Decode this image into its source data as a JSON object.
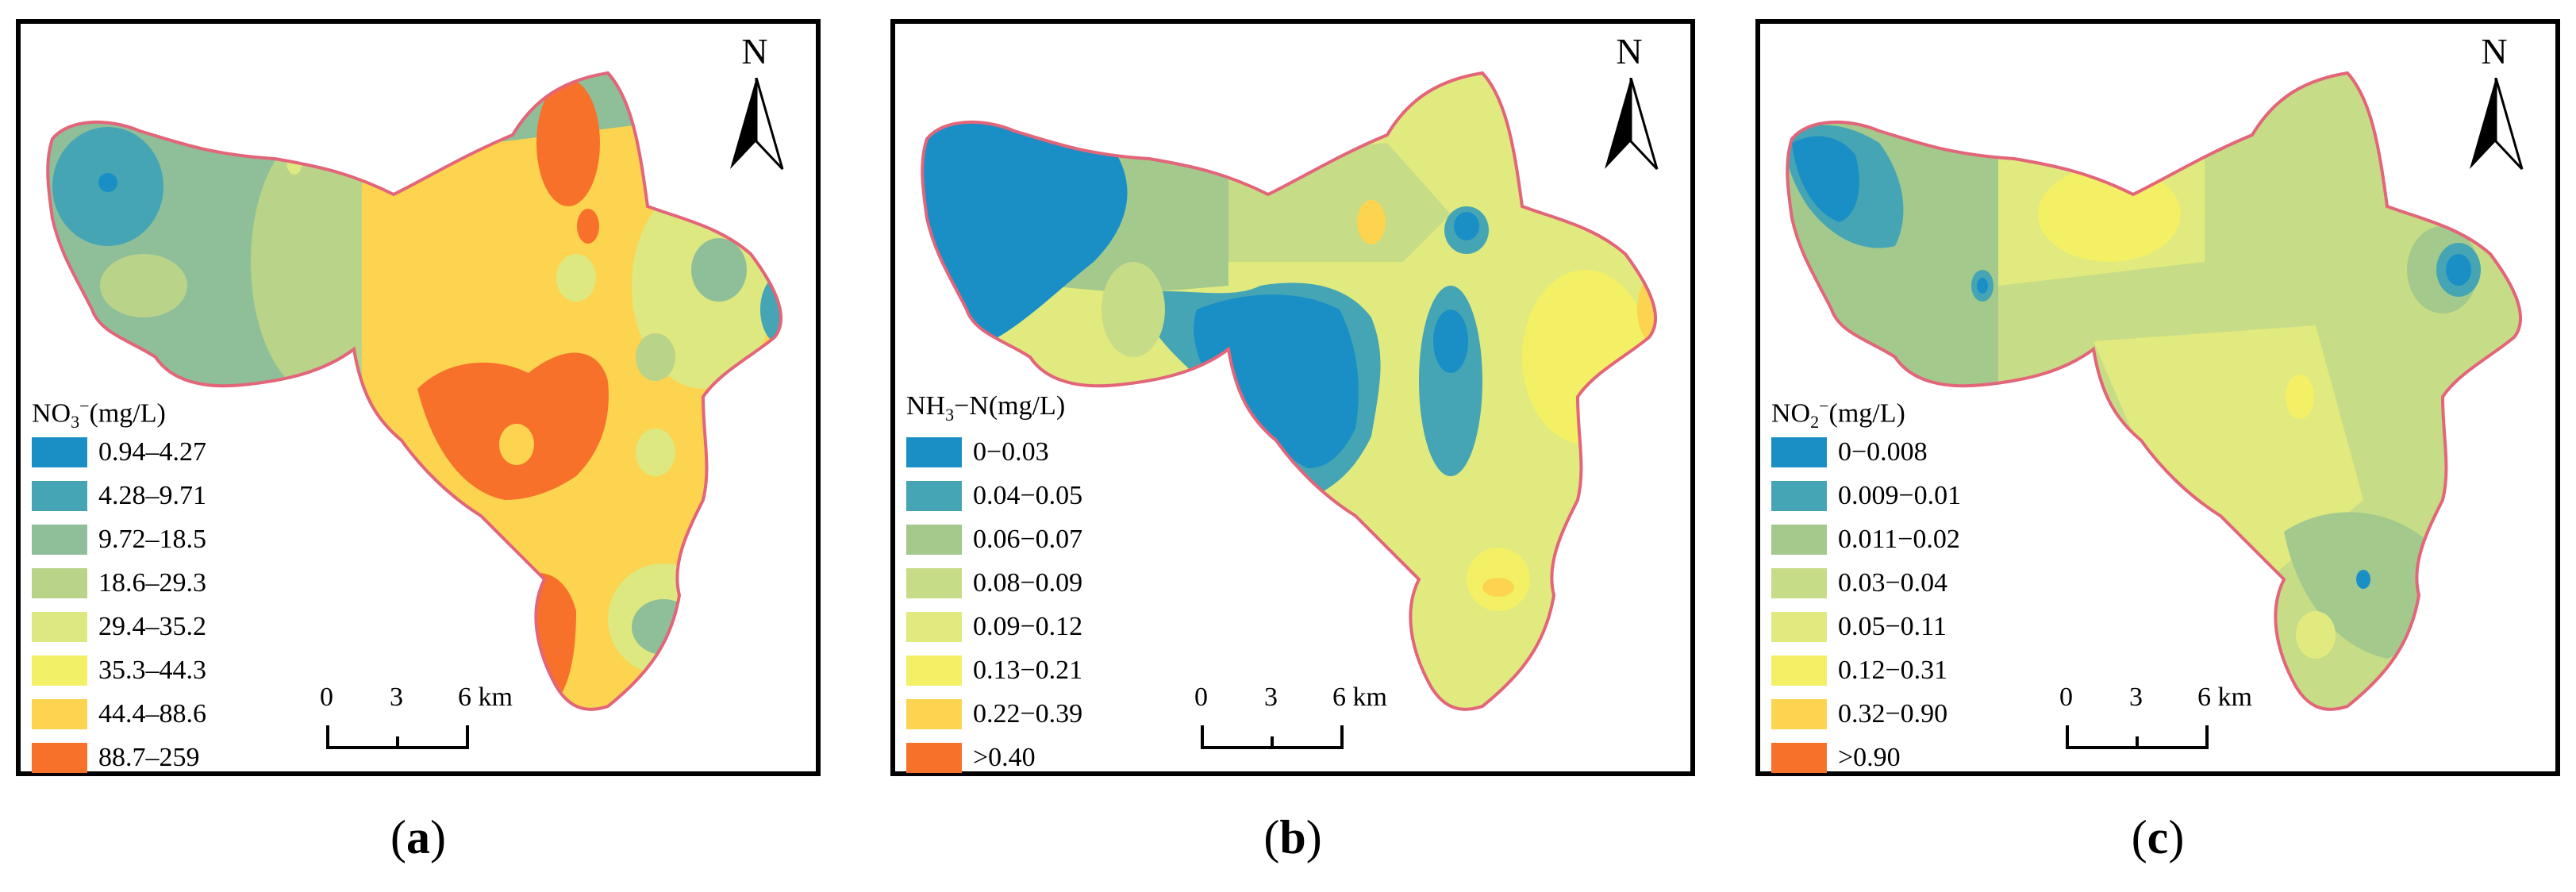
{
  "panels": [
    {
      "id": "a",
      "caption": "a",
      "legend_title": {
        "prefix": "NO",
        "sub": "3",
        "sup": "−",
        "suffix": "(mg/L)"
      },
      "north_label": "N",
      "scale_labels": [
        "0",
        "3",
        "6 km"
      ],
      "classes": [
        {
          "label": "0.94–4.27",
          "color": "#1a8fc6"
        },
        {
          "label": "4.28–9.71",
          "color": "#45a5b4"
        },
        {
          "label": "9.72–18.5",
          "color": "#8fbf98"
        },
        {
          "label": "18.6–29.3",
          "color": "#b9d389"
        },
        {
          "label": "29.4–35.2",
          "color": "#dde881"
        },
        {
          "label": "35.3–44.3",
          "color": "#f1f066"
        },
        {
          "label": "44.4–88.6",
          "color": "#fcd44f"
        },
        {
          "label": "88.7–259",
          "color": "#f7712a"
        }
      ]
    },
    {
      "id": "b",
      "caption": "b",
      "legend_title": {
        "prefix": "NH",
        "sub": "3",
        "sup": "",
        "suffix": "−N(mg/L)"
      },
      "north_label": "N",
      "scale_labels": [
        "0",
        "3",
        "6 km"
      ],
      "classes": [
        {
          "label": "0−0.03",
          "color": "#1a8fc6"
        },
        {
          "label": "0.04−0.05",
          "color": "#45a5b4"
        },
        {
          "label": "0.06−0.07",
          "color": "#a3c98d"
        },
        {
          "label": "0.08−0.09",
          "color": "#c7dc86"
        },
        {
          "label": "0.09−0.12",
          "color": "#e0ea7f"
        },
        {
          "label": "0.13−0.21",
          "color": "#f3f065"
        },
        {
          "label": "0.22−0.39",
          "color": "#fcd44f"
        },
        {
          "label": ">0.40",
          "color": "#f7712a"
        }
      ]
    },
    {
      "id": "c",
      "caption": "c",
      "legend_title": {
        "prefix": "NO",
        "sub": "2",
        "sup": "−",
        "suffix": "(mg/L)"
      },
      "north_label": "N",
      "scale_labels": [
        "0",
        "3",
        "6 km"
      ],
      "classes": [
        {
          "label": "0−0.008",
          "color": "#1a8fc6"
        },
        {
          "label": "0.009−0.01",
          "color": "#45a5b4"
        },
        {
          "label": "0.011−0.02",
          "color": "#a3c98d"
        },
        {
          "label": "0.03−0.04",
          "color": "#c7dc86"
        },
        {
          "label": "0.05−0.11",
          "color": "#e0ea7f"
        },
        {
          "label": "0.12−0.31",
          "color": "#f3f065"
        },
        {
          "label": "0.32−0.90",
          "color": "#fcd44f"
        },
        {
          "label": ">0.90",
          "color": "#f7712a"
        }
      ]
    }
  ]
}
